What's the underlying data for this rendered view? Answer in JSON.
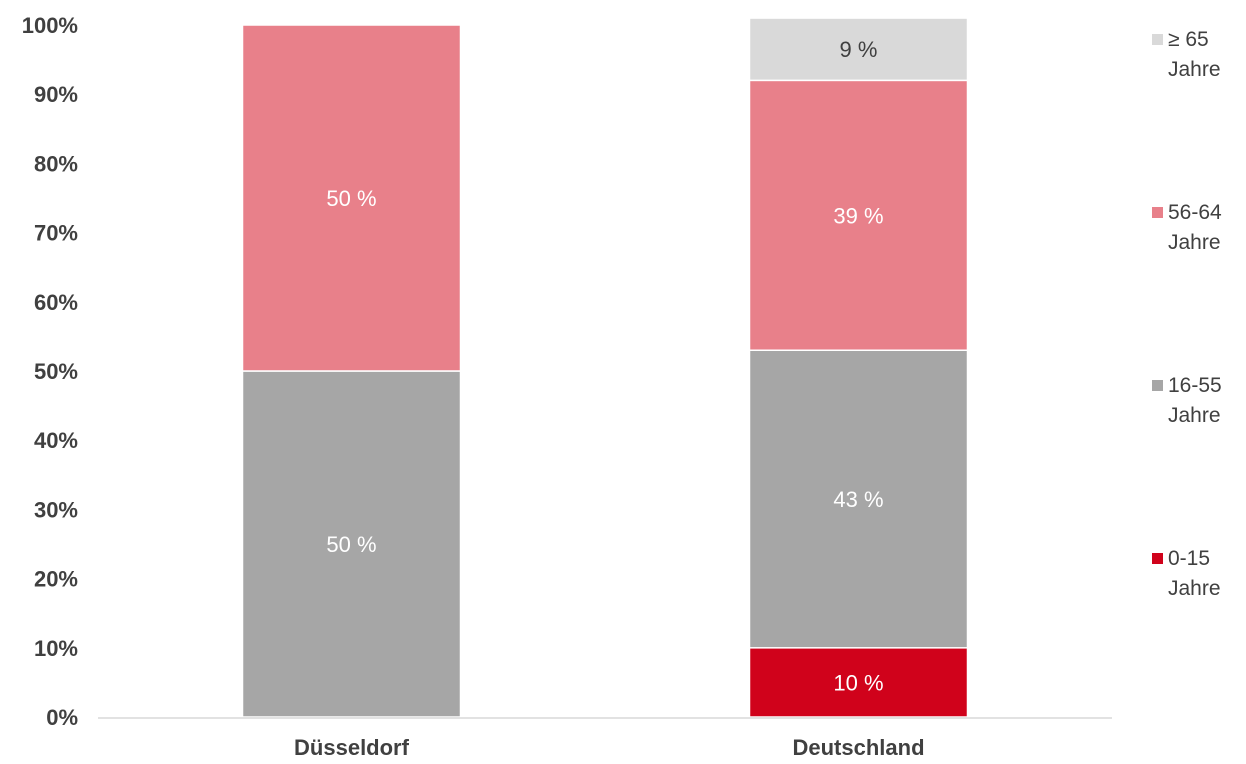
{
  "chart_data": {
    "type": "bar",
    "stacked": true,
    "normalized": true,
    "categories": [
      "Düsseldorf",
      "Deutschland"
    ],
    "ylim": [
      0,
      100
    ],
    "yticks": [
      "0%",
      "10%",
      "20%",
      "30%",
      "40%",
      "50%",
      "60%",
      "70%",
      "80%",
      "90%",
      "100%"
    ],
    "grid": false,
    "legend_position": "right",
    "series": [
      {
        "name": "0-15 Jahre",
        "legend_lines": [
          "0-15",
          "Jahre"
        ],
        "color": "#d0021b",
        "values": [
          0,
          10
        ],
        "labels": [
          "",
          "10 %"
        ],
        "label_color": "#ffffff"
      },
      {
        "name": "16-55 Jahre",
        "legend_lines": [
          "16-55",
          "Jahre"
        ],
        "color": "#a6a6a6",
        "values": [
          50,
          43
        ],
        "labels": [
          "50 %",
          "43 %"
        ],
        "label_color": "#ffffff"
      },
      {
        "name": "56-64 Jahre",
        "legend_lines": [
          "56-64",
          "Jahre"
        ],
        "color": "#e8808a",
        "values": [
          50,
          39
        ],
        "labels": [
          "50 %",
          "39 %"
        ],
        "label_color": "#ffffff"
      },
      {
        "name": "≥ 65 Jahre",
        "legend_lines": [
          "≥ 65",
          "Jahre"
        ],
        "color": "#d9d9d9",
        "values": [
          0,
          9
        ],
        "labels": [
          "",
          "9 %"
        ],
        "label_color": "#404040"
      }
    ]
  }
}
